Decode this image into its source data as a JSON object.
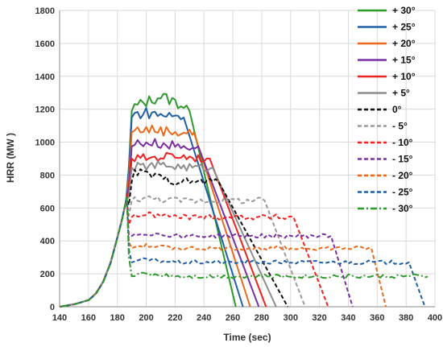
{
  "chart_data": {
    "type": "line",
    "title": "",
    "xlabel": "Time (sec)",
    "ylabel": "HRR (MW )",
    "xlim": [
      140,
      400
    ],
    "ylim": [
      0,
      1800
    ],
    "xticks": [
      140,
      160,
      180,
      200,
      220,
      240,
      260,
      280,
      300,
      320,
      340,
      360,
      380,
      400
    ],
    "yticks": [
      0,
      200,
      400,
      600,
      800,
      1000,
      1200,
      1400,
      1600,
      1800
    ],
    "grid": true,
    "legend_position": "top-right",
    "growth": {
      "x": [
        140,
        150,
        160,
        165,
        170,
        175,
        180,
        183,
        186
      ],
      "y": [
        0,
        15,
        40,
        80,
        150,
        260,
        420,
        520,
        640
      ]
    },
    "series": [
      {
        "name": "+ 30°",
        "color": "#2e9a2e",
        "dash": "solid",
        "plateau_start": 190,
        "plateau_level": 1190,
        "peak": 1280,
        "peak_time": 210,
        "decay_start": 230,
        "end_time": 262
      },
      {
        "name": "+ 25°",
        "color": "#1f5fa8",
        "dash": "solid",
        "plateau_start": 190,
        "plateau_level": 1150,
        "peak": 1180,
        "peak_time": 200,
        "decay_start": 226,
        "end_time": 267
      },
      {
        "name": "+ 20°",
        "color": "#ea6a1a",
        "dash": "solid",
        "plateau_start": 190,
        "plateau_level": 1060,
        "peak": 1080,
        "peak_time": 200,
        "decay_start": 233,
        "end_time": 272
      },
      {
        "name": "+ 15°",
        "color": "#7b2fa6",
        "dash": "solid",
        "plateau_start": 190,
        "plateau_level": 975,
        "peak": 1000,
        "peak_time": 200,
        "decay_start": 236,
        "end_time": 278
      },
      {
        "name": "+ 10°",
        "color": "#ee2222",
        "dash": "solid",
        "plateau_start": 190,
        "plateau_level": 900,
        "peak": 920,
        "peak_time": 220,
        "decay_start": 244,
        "end_time": 283
      },
      {
        "name": "+ 5°",
        "color": "#8c8c8c",
        "dash": "solid",
        "plateau_start": 190,
        "plateau_level": 845,
        "peak": 860,
        "peak_time": 210,
        "decay_start": 246,
        "end_time": 290
      },
      {
        "name": "0°",
        "color": "#111111",
        "dash": "dashed",
        "plateau_start": 190,
        "plateau_level": 760,
        "peak": 820,
        "peak_time": 195,
        "decay_start": 250,
        "end_time": 298
      },
      {
        "name": "- 5°",
        "color": "#9a9a9a",
        "dash": "dashed",
        "plateau_start": 190,
        "plateau_level": 645,
        "peak": 660,
        "peak_time": 200,
        "decay_start": 282,
        "end_time": 310
      },
      {
        "name": "- 10°",
        "color": "#ee2222",
        "dash": "dashed",
        "plateau_start": 190,
        "plateau_level": 545,
        "peak": 560,
        "peak_time": 200,
        "decay_start": 302,
        "end_time": 326
      },
      {
        "name": "- 15°",
        "color": "#7b2fa6",
        "dash": "dashed",
        "plateau_start": 190,
        "plateau_level": 430,
        "peak": 445,
        "peak_time": 200,
        "decay_start": 328,
        "end_time": 343
      },
      {
        "name": "- 20°",
        "color": "#ea6a1a",
        "dash": "dashed",
        "plateau_start": 190,
        "plateau_level": 355,
        "peak": 370,
        "peak_time": 200,
        "decay_start": 356,
        "end_time": 366
      },
      {
        "name": "- 25°",
        "color": "#1f5fa8",
        "dash": "dashed",
        "plateau_start": 190,
        "plateau_level": 270,
        "peak": 285,
        "peak_time": 200,
        "decay_start": 382,
        "end_time": 393
      },
      {
        "name": "- 30°",
        "color": "#2e9a2e",
        "dash": "dashdot",
        "plateau_start": 190,
        "plateau_level": 185,
        "peak": 200,
        "peak_time": 200,
        "decay_start": 395,
        "end_time": 395
      }
    ]
  }
}
